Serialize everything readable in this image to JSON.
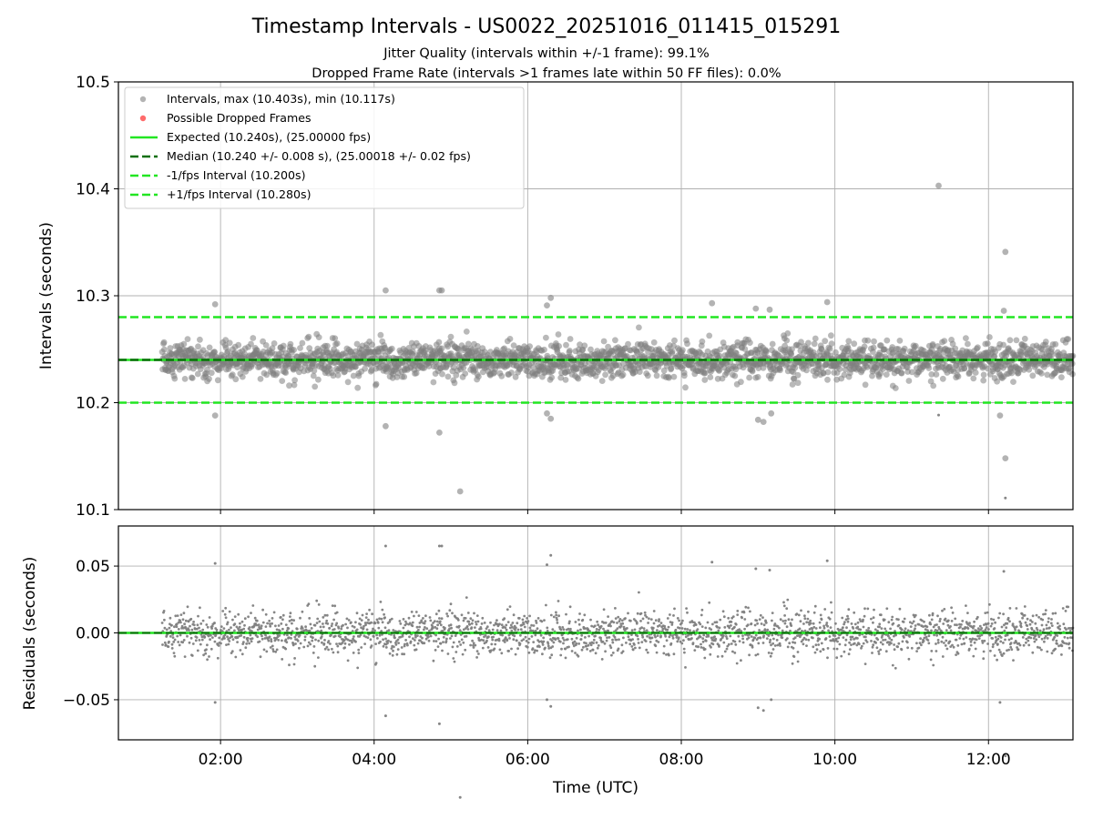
{
  "chart_data": {
    "type": "scatter",
    "title": "Timestamp Intervals - US0022_20251016_011415_015291",
    "subtitles": [
      "Jitter Quality (intervals within +/-1 frame): 99.1%",
      "Dropped Frame Rate (intervals >1 frames late within 50 FF files): 0.0%"
    ],
    "xlabel": "Time (UTC)",
    "x_ticks": [
      "02:00",
      "04:00",
      "06:00",
      "08:00",
      "10:00",
      "12:00"
    ],
    "x_tick_hours": [
      2,
      4,
      6,
      8,
      10,
      12
    ],
    "x_range_hours": [
      0.67,
      13.1
    ],
    "data_x_range_hours": [
      1.24,
      13.1
    ],
    "top_panel": {
      "ylabel": "Intervals (seconds)",
      "ylim": [
        10.1,
        10.5
      ],
      "y_ticks": [
        "10.1",
        "10.2",
        "10.3",
        "10.4",
        "10.5"
      ],
      "y_tick_values": [
        10.1,
        10.2,
        10.3,
        10.4,
        10.5
      ],
      "grid": true,
      "expected": 10.24,
      "median": 10.24,
      "minus_1fps": 10.2,
      "plus_1fps": 10.28,
      "max": 10.403,
      "min": 10.117,
      "outliers": [
        {
          "x": 11.35,
          "y": 10.403
        },
        {
          "x": 12.22,
          "y": 10.341
        },
        {
          "x": 12.22,
          "y": 10.148
        },
        {
          "x": 5.12,
          "y": 10.117
        },
        {
          "x": 4.85,
          "y": 10.172
        },
        {
          "x": 4.15,
          "y": 10.178
        },
        {
          "x": 4.15,
          "y": 10.305
        },
        {
          "x": 4.85,
          "y": 10.305
        },
        {
          "x": 4.88,
          "y": 10.305
        },
        {
          "x": 1.93,
          "y": 10.292
        },
        {
          "x": 1.93,
          "y": 10.188
        },
        {
          "x": 6.3,
          "y": 10.298
        },
        {
          "x": 6.25,
          "y": 10.291
        },
        {
          "x": 6.25,
          "y": 10.19
        },
        {
          "x": 6.3,
          "y": 10.185
        },
        {
          "x": 8.4,
          "y": 10.293
        },
        {
          "x": 9.9,
          "y": 10.294
        },
        {
          "x": 9.0,
          "y": 10.184
        },
        {
          "x": 9.07,
          "y": 10.182
        },
        {
          "x": 9.17,
          "y": 10.19
        },
        {
          "x": 12.15,
          "y": 10.188
        },
        {
          "x": 12.2,
          "y": 10.286
        },
        {
          "x": 8.97,
          "y": 10.288
        },
        {
          "x": 9.15,
          "y": 10.287
        }
      ]
    },
    "bottom_panel": {
      "ylabel": "Residuals (seconds)",
      "ylim": [
        -0.08,
        0.08
      ],
      "y_ticks": [
        "0.05",
        "0.00",
        "−0.05"
      ],
      "y_tick_values": [
        0.05,
        0.0,
        -0.05
      ],
      "grid": true,
      "zero_line": 0.0
    },
    "legend": {
      "placement": "top-left",
      "entries": [
        {
          "label": "Intervals, max (10.403s), min (10.117s)",
          "kind": "marker",
          "color": "#808080"
        },
        {
          "label": "Possible Dropped Frames",
          "kind": "marker",
          "color": "#ff6b6b"
        },
        {
          "label": "Expected (10.240s), (25.00000 fps)",
          "kind": "solid",
          "color": "#22e622"
        },
        {
          "label": "Median (10.240 +/- 0.008 s), (25.00018 +/- 0.02 fps)",
          "kind": "dashed",
          "color": "#0a6e0a"
        },
        {
          "label": "-1/fps Interval (10.200s)",
          "kind": "dashed",
          "color": "#22e622"
        },
        {
          "label": "+1/fps Interval (10.280s)",
          "kind": "dashed",
          "color": "#22e622"
        }
      ]
    },
    "colors": {
      "points": "#808080",
      "expected": "#22e622",
      "median": "#0a6e0a",
      "fps_bounds": "#22e622"
    }
  }
}
